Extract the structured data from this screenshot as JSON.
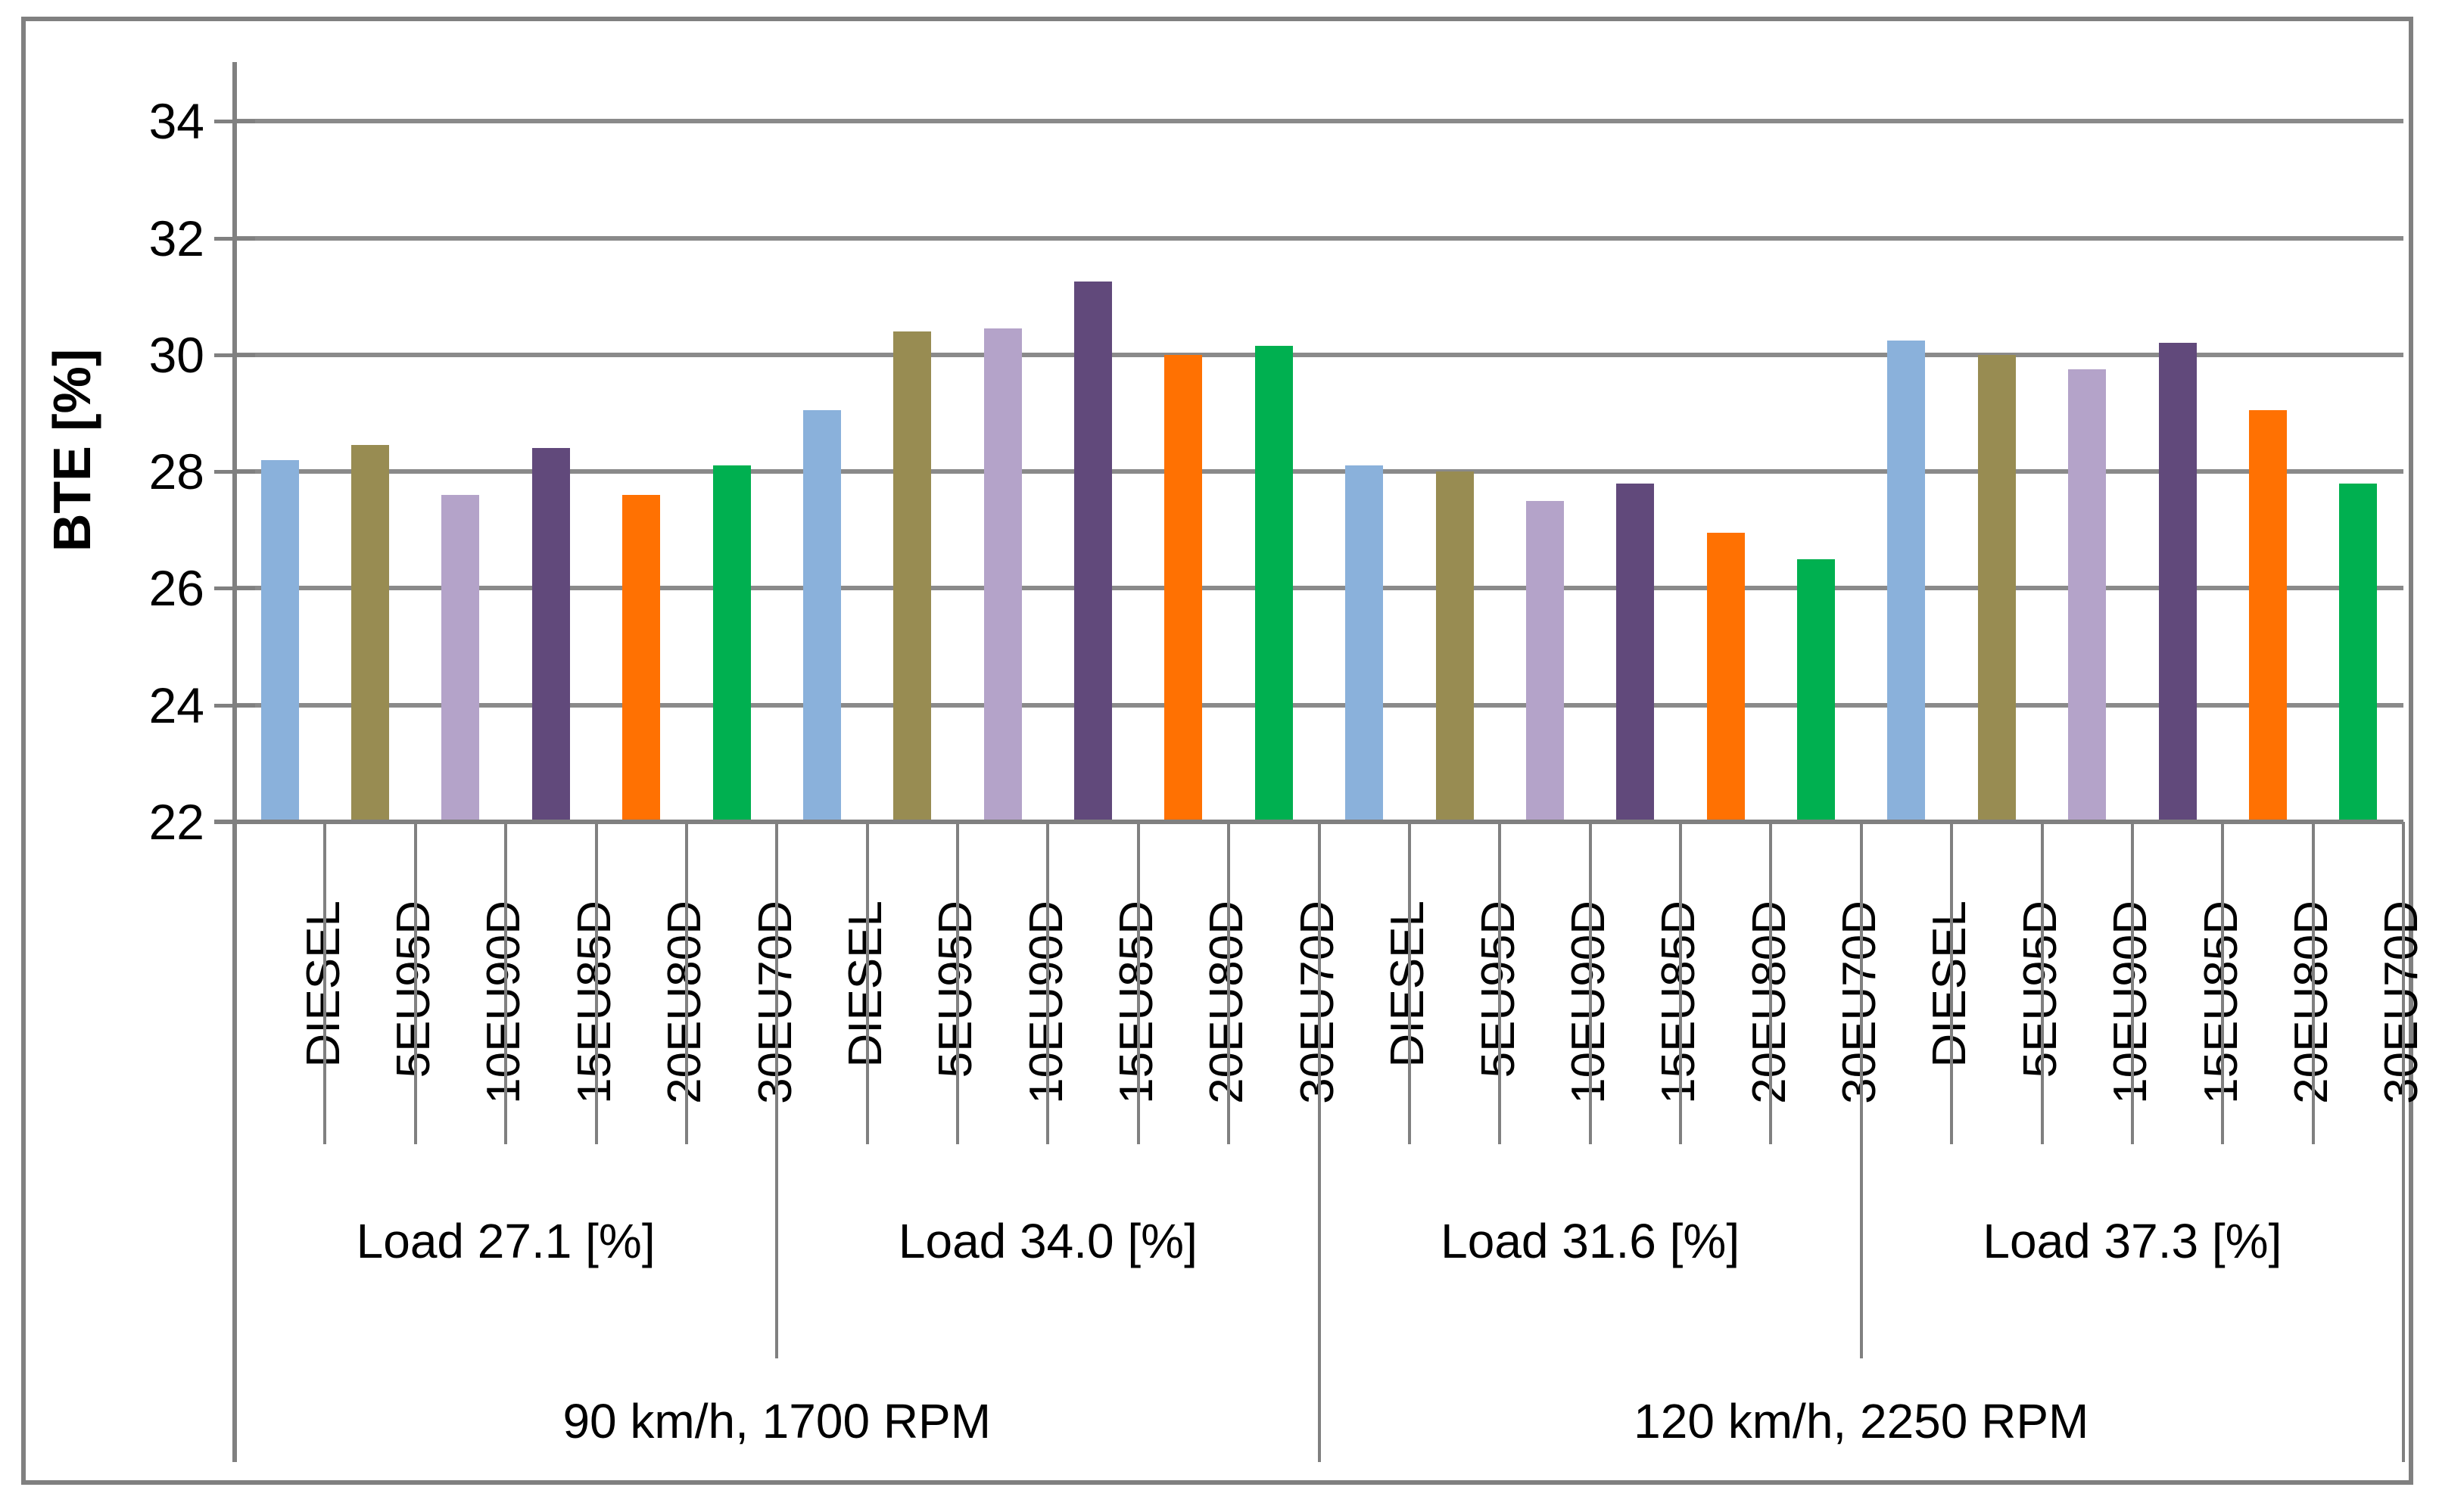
{
  "chart_data": {
    "type": "bar",
    "title": "",
    "xlabel": "",
    "ylabel": "BTE [%]",
    "ylim": [
      22,
      35
    ],
    "yticks": [
      22,
      24,
      26,
      28,
      30,
      32,
      34
    ],
    "grid": "horizontal gridlines on",
    "legend_position": "none",
    "categories_note": "24 bars in 4 groups of 6 fuels; category labels rotated 90deg reading bottom-to-top",
    "fuels": [
      "DIESEL",
      "5EU95D",
      "10EU90D",
      "15EU85D",
      "20EU80D",
      "30EU70D"
    ],
    "bar_colors": [
      "#8AB1DB",
      "#988C52",
      "#B4A3C9",
      "#61497B",
      "#FF7102",
      "#00B050"
    ],
    "groups": [
      {
        "load_label": "Load 27.1 [%]",
        "values": [
          28.2,
          28.45,
          27.6,
          28.4,
          27.6,
          28.1
        ]
      },
      {
        "load_label": "Load 34.0 [%]",
        "values": [
          29.05,
          30.4,
          30.45,
          31.25,
          30.0,
          30.15
        ]
      },
      {
        "load_label": "Load 31.6 [%]",
        "values": [
          28.1,
          28.0,
          27.5,
          27.8,
          26.95,
          26.5
        ]
      },
      {
        "load_label": "Load 37.3 [%]",
        "values": [
          30.25,
          30.0,
          29.75,
          30.2,
          29.05,
          27.8
        ]
      }
    ],
    "speed_groups": [
      {
        "label": "90 km/h, 1700 RPM",
        "covers_groups": [
          0,
          1
        ]
      },
      {
        "label": "120 km/h, 2250 RPM",
        "covers_groups": [
          2,
          3
        ]
      }
    ],
    "colors": {
      "gridline": "#8A8A8A",
      "axis": "#808080",
      "frame": "#808080",
      "text": "#000000",
      "background": "#FFFFFF"
    }
  }
}
